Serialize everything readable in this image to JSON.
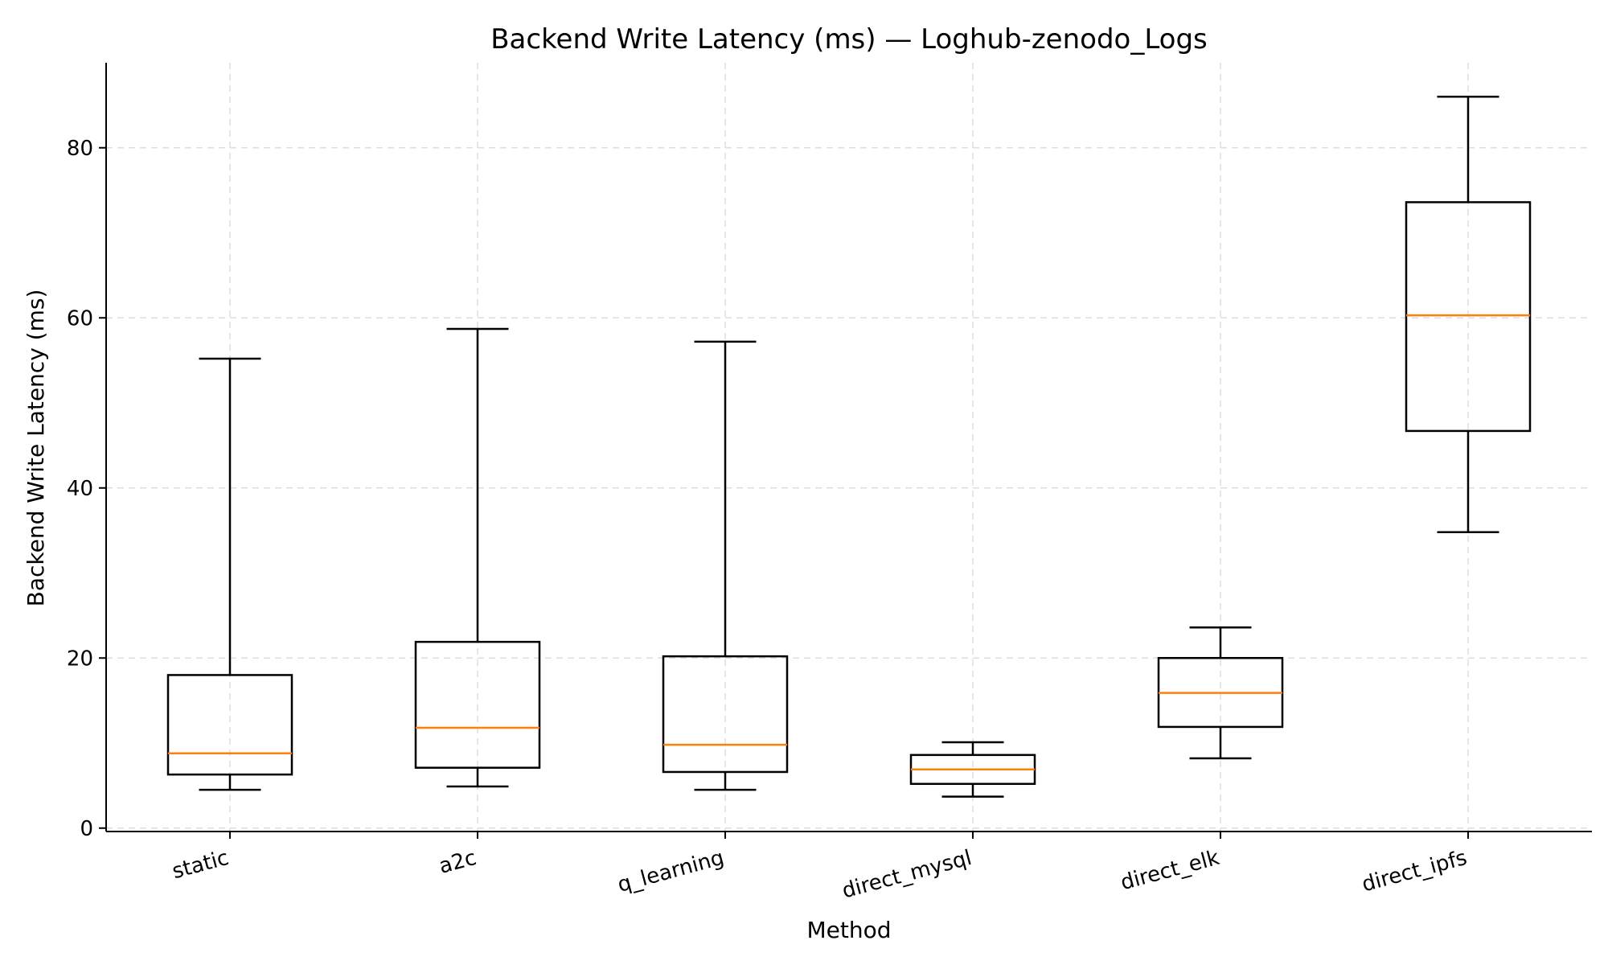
{
  "chart_data": {
    "type": "box",
    "title": "Backend Write Latency (ms) — Loghub-zenodo_Logs",
    "xlabel": "Method",
    "ylabel": "Backend Write Latency (ms)",
    "ylim": [
      -0.4,
      90
    ],
    "yticks": [
      0,
      20,
      40,
      60,
      80
    ],
    "grid": true,
    "categories": [
      "static",
      "a2c",
      "q_learning",
      "direct_mysql",
      "direct_elk",
      "direct_ipfs"
    ],
    "boxes": [
      {
        "category": "static",
        "whisker_low": 4.5,
        "q1": 6.3,
        "median": 8.8,
        "q3": 18.0,
        "whisker_high": 55.2
      },
      {
        "category": "a2c",
        "whisker_low": 4.9,
        "q1": 7.1,
        "median": 11.8,
        "q3": 21.9,
        "whisker_high": 58.7
      },
      {
        "category": "q_learning",
        "whisker_low": 4.5,
        "q1": 6.6,
        "median": 9.8,
        "q3": 20.2,
        "whisker_high": 57.2
      },
      {
        "category": "direct_mysql",
        "whisker_low": 3.7,
        "q1": 5.2,
        "median": 6.9,
        "q3": 8.6,
        "whisker_high": 10.1
      },
      {
        "category": "direct_elk",
        "whisker_low": 8.2,
        "q1": 11.9,
        "median": 15.9,
        "q3": 20.0,
        "whisker_high": 23.6
      },
      {
        "category": "direct_ipfs",
        "whisker_low": 34.8,
        "q1": 46.7,
        "median": 60.3,
        "q3": 73.6,
        "whisker_high": 86.0
      }
    ],
    "colors": {
      "box": "#000000",
      "median": "#ff7f0e",
      "grid": "#dddddd"
    }
  }
}
